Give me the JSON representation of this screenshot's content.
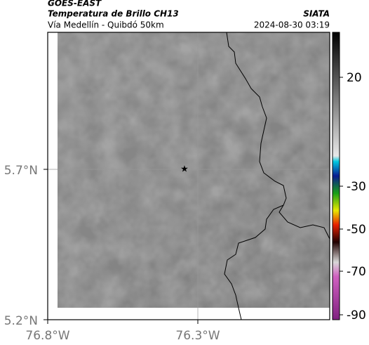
{
  "header": {
    "source": "GOES-EAST",
    "title": "Temperatura de Brillo CH13",
    "subtitle": "Vía Medellín - Quibdó 50km",
    "brand": "SIATA",
    "timestamp": "2024-08-30 03:19"
  },
  "axes": {
    "lat_labels": [
      "5.7°N",
      "5.2°N"
    ],
    "lon_labels": [
      "76.8°W",
      "76.3°W"
    ]
  },
  "colorbar": {
    "labels": [
      "20",
      "-30",
      "-50",
      "-70",
      "-90"
    ]
  }
}
